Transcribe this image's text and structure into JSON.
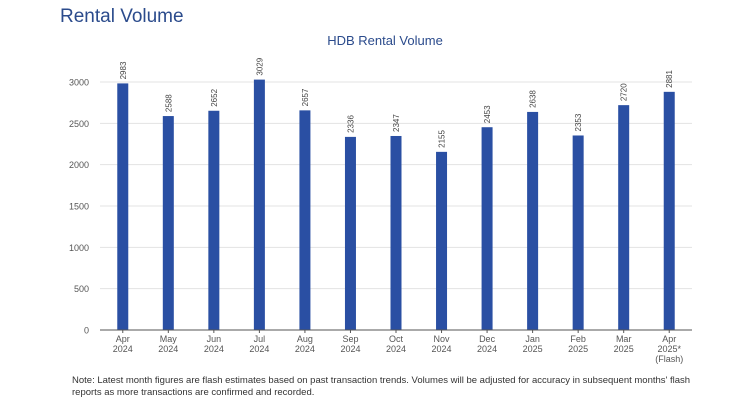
{
  "page": {
    "title": "Rental Volume",
    "note": "Note: Latest month figures are flash estimates based on past transaction trends. Volumes will be adjusted for accuracy in subsequent months' flash reports as more transactions are confirmed and recorded."
  },
  "chart_data": {
    "type": "bar",
    "title": "HDB Rental Volume",
    "xlabel": "",
    "ylabel": "",
    "categories": [
      [
        "Apr",
        "2024"
      ],
      [
        "May",
        "2024"
      ],
      [
        "Jun",
        "2024"
      ],
      [
        "Jul",
        "2024"
      ],
      [
        "Aug",
        "2024"
      ],
      [
        "Sep",
        "2024"
      ],
      [
        "Oct",
        "2024"
      ],
      [
        "Nov",
        "2024"
      ],
      [
        "Dec",
        "2024"
      ],
      [
        "Jan",
        "2025"
      ],
      [
        "Feb",
        "2025"
      ],
      [
        "Mar",
        "2025"
      ],
      [
        "Apr",
        "2025*",
        "(Flash)"
      ]
    ],
    "values": [
      2983,
      2588,
      2652,
      3029,
      2657,
      2336,
      2347,
      2155,
      2453,
      2638,
      2353,
      2720,
      2881
    ],
    "ylim": [
      0,
      3000
    ],
    "yticks": [
      0,
      500,
      1000,
      1500,
      2000,
      2500,
      3000
    ],
    "grid": true,
    "legend": "none",
    "colors": {
      "bar": "#2a4fa3",
      "grid": "#e3e3e3",
      "axis": "#555555",
      "title": "#2b4b8c"
    }
  }
}
